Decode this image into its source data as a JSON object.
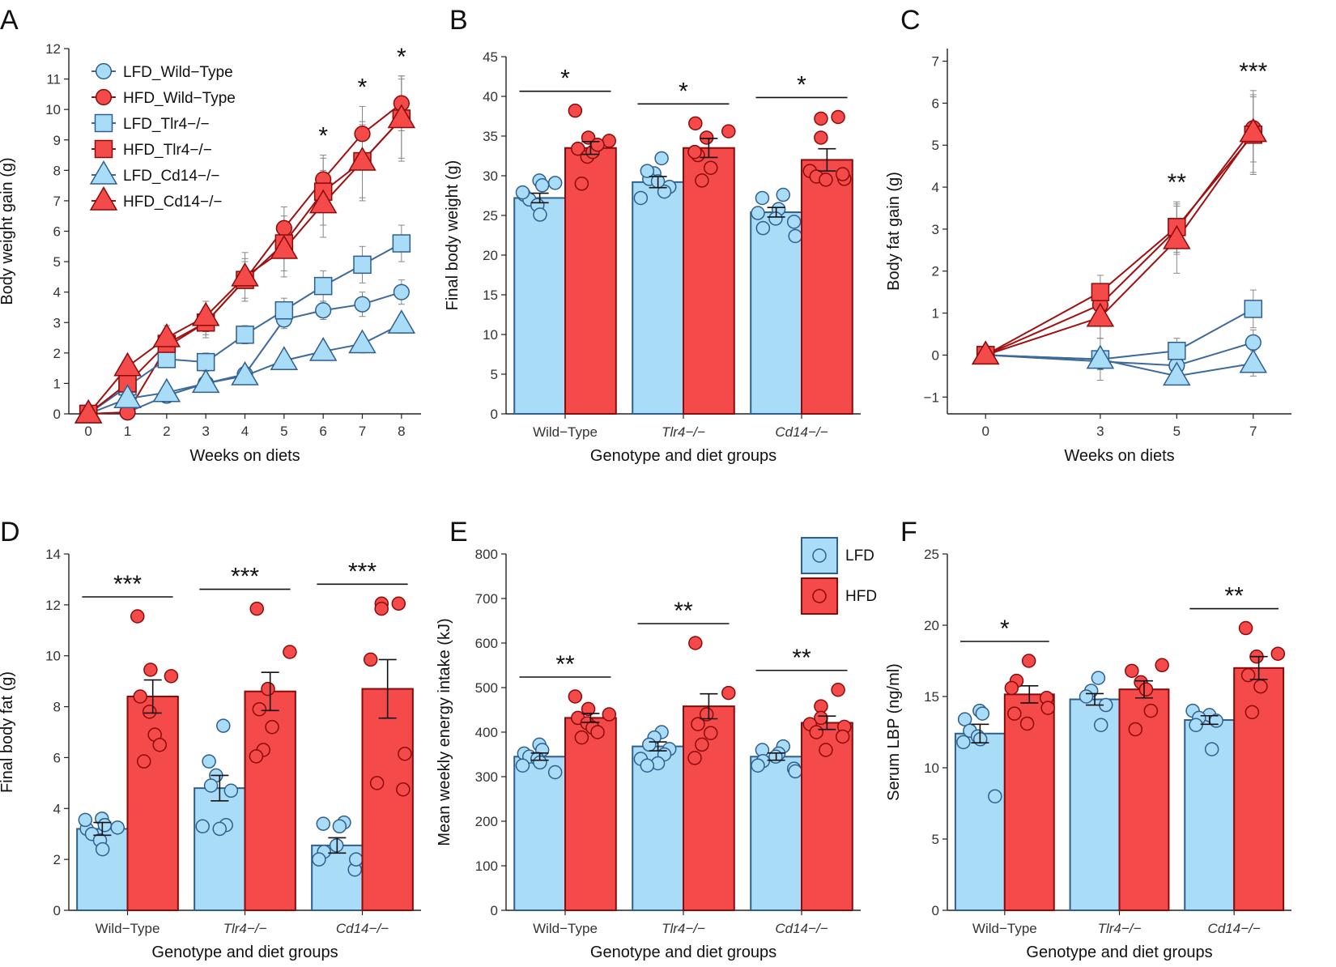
{
  "figure": {
    "colors": {
      "lfd_fill": "#a9dcf7",
      "lfd_stroke": "#2f5f8f",
      "hfd_fill": "#f44a4a",
      "hfd_stroke": "#8c0a0a",
      "line_lfd": "#3d6a99",
      "line_hfd": "#a01010"
    },
    "legend_E": {
      "lfd": "LFD",
      "hfd": "HFD"
    }
  },
  "chart_data": [
    {
      "id": "A",
      "type": "line",
      "panel_label": "A",
      "xlabel": "Weeks on diets",
      "ylabel": "Body weight gain (g)",
      "x": [
        0,
        1,
        2,
        3,
        4,
        5,
        6,
        7,
        8
      ],
      "ylim": [
        0,
        12
      ],
      "yticks": [
        "0",
        "1",
        "2",
        "3",
        "4",
        "5",
        "6",
        "7",
        "8",
        "9",
        "10",
        "11",
        "12"
      ],
      "xticks": [
        "0",
        "1",
        "2",
        "3",
        "4",
        "5",
        "6",
        "7",
        "8"
      ],
      "series": [
        {
          "name": "LFD_Wild−Type",
          "diet": "LFD",
          "marker": "circle",
          "values": [
            0,
            0.05,
            0.6,
            1.0,
            1.3,
            3.1,
            3.4,
            3.6,
            4.0
          ],
          "err": [
            0,
            0.1,
            0.15,
            0.2,
            0.25,
            0.3,
            0.3,
            0.4,
            0.4
          ]
        },
        {
          "name": "HFD_Wild−Type",
          "diet": "HFD",
          "marker": "circle",
          "values": [
            0,
            0.05,
            2.2,
            3.0,
            4.4,
            6.1,
            7.7,
            9.2,
            10.2
          ],
          "err": [
            0,
            0.2,
            0.3,
            0.4,
            0.6,
            0.7,
            0.8,
            0.9,
            0.9
          ]
        },
        {
          "name": "LFD_Tlr4−/−",
          "diet": "LFD",
          "marker": "square",
          "values": [
            0,
            0.9,
            1.8,
            1.7,
            2.6,
            3.4,
            4.2,
            4.9,
            5.6
          ],
          "err": [
            0,
            0.2,
            0.2,
            0.3,
            0.3,
            0.4,
            0.5,
            0.6,
            0.6
          ]
        },
        {
          "name": "HFD_Tlr4−/−",
          "diet": "HFD",
          "marker": "square",
          "values": [
            0,
            1.0,
            2.3,
            3.0,
            4.4,
            5.6,
            7.3,
            8.3,
            9.7
          ],
          "err": [
            0,
            0.2,
            0.4,
            0.5,
            0.7,
            0.9,
            1.1,
            1.2,
            1.3
          ]
        },
        {
          "name": "LFD_Cd14−/−",
          "diet": "LFD",
          "marker": "triangle",
          "values": [
            0,
            0.5,
            0.7,
            1.0,
            1.25,
            1.75,
            2.05,
            2.3,
            2.95
          ],
          "err": [
            0,
            0.1,
            0.15,
            0.2,
            0.2,
            0.2,
            0.25,
            0.3,
            0.3
          ]
        },
        {
          "name": "HFD_Cd14−/−",
          "diet": "HFD",
          "marker": "triangle",
          "values": [
            0,
            1.55,
            2.5,
            3.2,
            4.5,
            5.4,
            6.9,
            8.3,
            9.7
          ],
          "err": [
            0,
            0.2,
            0.4,
            0.5,
            0.8,
            0.9,
            1.1,
            1.3,
            1.4
          ]
        }
      ],
      "annotations": [
        {
          "x": 6,
          "text": "*"
        },
        {
          "x": 7,
          "text": "*"
        },
        {
          "x": 8,
          "text": "*"
        }
      ]
    },
    {
      "id": "B",
      "type": "bar",
      "panel_label": "B",
      "xlabel": "Genotype and diet groups",
      "ylabel": "Final body weight (g)",
      "categories": [
        "Wild−Type",
        "Tlr4−/−",
        "Cd14−/−"
      ],
      "italic": [
        false,
        true,
        true
      ],
      "ylim": [
        0,
        45
      ],
      "yticks": [
        "0",
        "5",
        "10",
        "15",
        "20",
        "25",
        "30",
        "35",
        "40",
        "45"
      ],
      "series": [
        {
          "name": "LFD",
          "values": [
            27.2,
            29.2,
            25.4
          ],
          "err": [
            0.6,
            0.7,
            0.6
          ],
          "points": [
            [
              29.4,
              28.8,
              27.6,
              27.0,
              26.3,
              25.1,
              27.9,
              29.1
            ],
            [
              32.2,
              30.3,
              29.6,
              28.6,
              28.0,
              27.2,
              29.3,
              30.6
            ],
            [
              27.6,
              27.2,
              25.8,
              24.6,
              23.4,
              25.3,
              24.2,
              22.4
            ]
          ]
        },
        {
          "name": "HFD",
          "values": [
            33.5,
            33.5,
            32.0
          ],
          "err": [
            0.8,
            1.2,
            1.4
          ],
          "points": [
            [
              38.2,
              34.8,
              34.4,
              33.4,
              32.4,
              33.0,
              33.9,
              29.0
            ],
            [
              36.6,
              35.6,
              34.8,
              32.6,
              31.0,
              29.4,
              33.0
            ],
            [
              37.4,
              37.2,
              34.8,
              30.6,
              29.6,
              29.9,
              30.2,
              29.5
            ]
          ]
        }
      ],
      "annotations": [
        {
          "category": 0,
          "text": "*"
        },
        {
          "category": 1,
          "text": "*"
        },
        {
          "category": 2,
          "text": "*"
        }
      ]
    },
    {
      "id": "C",
      "type": "line",
      "panel_label": "C",
      "xlabel": "Weeks on diets",
      "ylabel": "Body fat gain (g)",
      "x": [
        0,
        3,
        5,
        7
      ],
      "ylim": [
        -1.4,
        7.3
      ],
      "yticks": [
        "−1",
        "0",
        "1",
        "2",
        "3",
        "4",
        "5",
        "6",
        "7"
      ],
      "ytick_values": [
        -1,
        0,
        1,
        2,
        3,
        4,
        5,
        6,
        7
      ],
      "xticks": [
        "0",
        "3",
        "5",
        "7"
      ],
      "series": [
        {
          "name": "LFD_Wild−Type",
          "diet": "LFD",
          "marker": "circle",
          "values": [
            0,
            -0.15,
            -0.25,
            0.3
          ],
          "err": [
            0,
            0.2,
            0.2,
            0.3
          ]
        },
        {
          "name": "HFD_Wild−Type",
          "diet": "HFD",
          "marker": "circle",
          "values": [
            0,
            1.2,
            3.0,
            5.4
          ],
          "err": [
            0,
            0.3,
            0.6,
            0.8
          ]
        },
        {
          "name": "LFD_Tlr4−/−",
          "diet": "LFD",
          "marker": "square",
          "values": [
            0,
            -0.1,
            0.1,
            1.1
          ],
          "err": [
            0,
            0.2,
            0.3,
            0.45
          ]
        },
        {
          "name": "HFD_Tlr4−/−",
          "diet": "HFD",
          "marker": "square",
          "values": [
            0,
            1.5,
            3.05,
            5.25
          ],
          "err": [
            0,
            0.4,
            0.6,
            0.9
          ]
        },
        {
          "name": "LFD_Cd14−/−",
          "diet": "LFD",
          "marker": "triangle",
          "values": [
            0,
            -0.1,
            -0.5,
            -0.2
          ],
          "err": [
            0,
            0.5,
            0.2,
            0.3
          ]
        },
        {
          "name": "HFD_Cd14−/−",
          "diet": "HFD",
          "marker": "triangle",
          "values": [
            0,
            0.9,
            2.75,
            5.3
          ],
          "err": [
            0,
            0.5,
            0.8,
            1.0
          ]
        }
      ],
      "annotations": [
        {
          "x": 5,
          "text": "**"
        },
        {
          "x": 7,
          "text": "***"
        }
      ]
    },
    {
      "id": "D",
      "type": "bar",
      "panel_label": "D",
      "xlabel": "Genotype and diet groups",
      "ylabel": "Final body fat (g)",
      "categories": [
        "Wild−Type",
        "Tlr4−/−",
        "Cd14−/−"
      ],
      "italic": [
        false,
        true,
        true
      ],
      "ylim": [
        0,
        14
      ],
      "yticks": [
        "0",
        "2",
        "4",
        "6",
        "8",
        "10",
        "12",
        "14"
      ],
      "series": [
        {
          "name": "LFD",
          "values": [
            3.2,
            4.8,
            2.55
          ],
          "err": [
            0.25,
            0.5,
            0.3
          ],
          "points": [
            [
              3.6,
              3.35,
              3.2,
              3.0,
              2.75,
              2.4,
              3.55,
              3.25
            ],
            [
              7.25,
              5.3,
              4.9,
              4.7,
              3.35,
              3.3,
              3.2,
              5.85
            ],
            [
              3.45,
              3.4,
              3.3,
              2.55,
              2.3,
              2.0,
              1.6,
              2.0
            ]
          ]
        },
        {
          "name": "HFD",
          "values": [
            8.4,
            8.6,
            8.7
          ],
          "err": [
            0.65,
            0.75,
            1.15
          ],
          "points": [
            [
              11.55,
              9.45,
              9.2,
              8.4,
              7.8,
              6.9,
              6.5,
              5.85
            ],
            [
              11.85,
              10.15,
              8.7,
              7.9,
              7.2,
              6.3,
              6.05
            ],
            [
              12.05,
              12.05,
              11.85,
              9.85,
              6.15,
              5.0,
              4.75
            ]
          ]
        }
      ],
      "annotations": [
        {
          "category": 0,
          "text": "***"
        },
        {
          "category": 1,
          "text": "***"
        },
        {
          "category": 2,
          "text": "***"
        }
      ]
    },
    {
      "id": "E",
      "type": "bar",
      "panel_label": "E",
      "xlabel": "Genotype and diet groups",
      "ylabel": "Mean weekly energy intake (kJ)",
      "categories": [
        "Wild−Type",
        "Tlr4−/−",
        "Cd14−/−"
      ],
      "italic": [
        false,
        true,
        true
      ],
      "ylim": [
        0,
        800
      ],
      "yticks": [
        "0",
        "100",
        "200",
        "300",
        "400",
        "500",
        "600",
        "700",
        "800"
      ],
      "series": [
        {
          "name": "LFD",
          "values": [
            345,
            368,
            345
          ],
          "err": [
            8,
            10,
            8
          ],
          "points": [
            [
              372,
              360,
              352,
              345,
              340,
              332,
              325,
              310
            ],
            [
              400,
              388,
              372,
              362,
              350,
              340,
              330,
              325
            ],
            [
              368,
              360,
              352,
              345,
              335,
              325,
              318,
              312
            ]
          ]
        },
        {
          "name": "HFD",
          "values": [
            432,
            458,
            421
          ],
          "err": [
            10,
            28,
            15
          ],
          "points": [
            [
              480,
              452,
              440,
              432,
              420,
              410,
              400,
              388
            ],
            [
              600,
              488,
              440,
              418,
              398,
              372,
              342
            ],
            [
              495,
              458,
              432,
              418,
              412,
              400,
              390,
              360
            ]
          ]
        }
      ],
      "annotations": [
        {
          "category": 0,
          "text": "**"
        },
        {
          "category": 1,
          "text": "**"
        },
        {
          "category": 2,
          "text": "**"
        }
      ]
    },
    {
      "id": "F",
      "type": "bar",
      "panel_label": "F",
      "xlabel": "Genotype and diet groups",
      "ylabel": "Serum LBP (ng/ml)",
      "categories": [
        "Wild−Type",
        "Tlr4−/−",
        "Cd14−/−"
      ],
      "italic": [
        false,
        true,
        true
      ],
      "ylim": [
        0,
        25
      ],
      "yticks": [
        "0",
        "5",
        "10",
        "15",
        "20",
        "25"
      ],
      "series": [
        {
          "name": "LFD",
          "values": [
            12.4,
            14.8,
            13.35
          ],
          "err": [
            0.65,
            0.4,
            0.3
          ],
          "points": [
            [
              14.0,
              13.8,
              13.4,
              12.6,
              12.2,
              12.0,
              11.8,
              8.0
            ],
            [
              16.3,
              15.4,
              15.0,
              14.4,
              13.0
            ],
            [
              14.0,
              13.7,
              13.5,
              13.3,
              13.0,
              11.3
            ]
          ]
        },
        {
          "name": "HFD",
          "values": [
            15.15,
            15.5,
            17.0
          ],
          "err": [
            0.6,
            0.6,
            0.8
          ],
          "points": [
            [
              17.5,
              16.1,
              15.6,
              14.9,
              14.2,
              13.8,
              13.1
            ],
            [
              17.2,
              16.8,
              16.0,
              15.5,
              14.0,
              12.7
            ],
            [
              19.8,
              18.0,
              17.8,
              16.5,
              15.7,
              13.9
            ]
          ]
        }
      ],
      "annotations": [
        {
          "category": 0,
          "text": "*"
        },
        {
          "category": 2,
          "text": "**"
        }
      ]
    }
  ]
}
